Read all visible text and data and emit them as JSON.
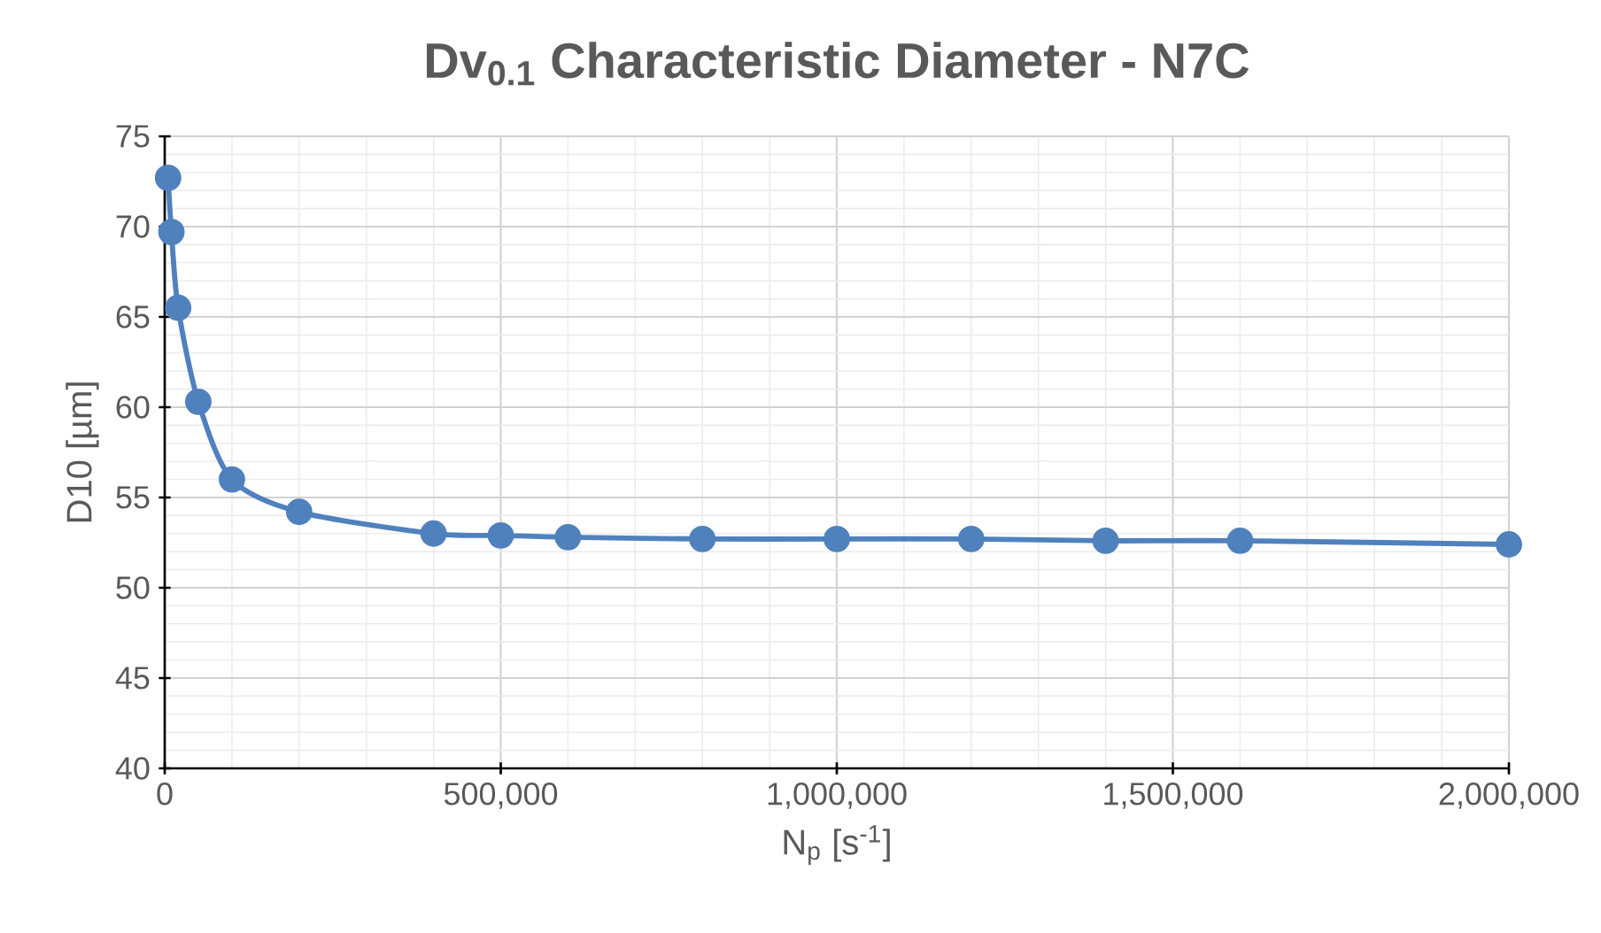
{
  "chart_data": {
    "type": "line",
    "title": "Dv$_{0.1}$ Characteristic Diameter - N7C",
    "xlabel": "N$_{p}$ [s$^{-1}$]",
    "ylabel": "D10 [µm]",
    "x": [
      5000,
      10000,
      20000,
      50000,
      100000,
      200000,
      400000,
      500000,
      600000,
      800000,
      1000000,
      1200000,
      1400000,
      1600000,
      2000000
    ],
    "series": [
      {
        "color": "#4f81bd",
        "values": [
          72.7,
          69.7,
          65.5,
          60.3,
          56.0,
          54.2,
          53.0,
          52.9,
          52.8,
          52.7,
          52.7,
          52.7,
          52.6,
          52.6,
          52.4
        ]
      }
    ],
    "xlim": [
      0,
      2000000
    ],
    "ylim": [
      40,
      75
    ],
    "xticks": [
      0,
      {
        "value": 500000,
        "label": "500,000"
      },
      {
        "value": 1000000,
        "label": "1,000,000"
      },
      {
        "value": 1500000,
        "label": "1,500,000"
      },
      {
        "value": 2000000,
        "label": "2,000,000"
      }
    ],
    "yticks": [
      40,
      45,
      50,
      55,
      60,
      65,
      70,
      75
    ],
    "grid": true,
    "marker": "circle",
    "line_style": "solid"
  }
}
